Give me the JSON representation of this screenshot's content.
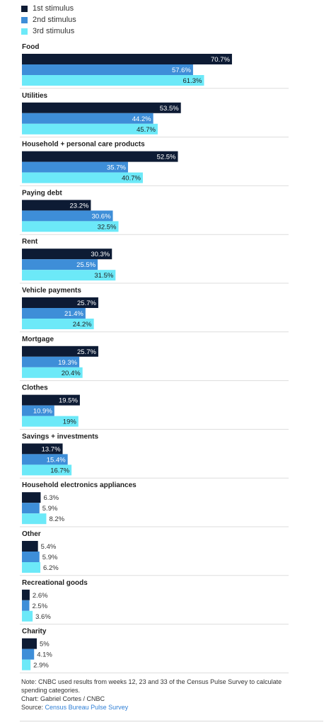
{
  "legend": [
    {
      "label": "1st stimulus",
      "color": "#0d1b34"
    },
    {
      "label": "2nd stimulus",
      "color": "#3e8ed8"
    },
    {
      "label": "3rd stimulus",
      "color": "#6ce9f8"
    }
  ],
  "chart_data": {
    "type": "bar",
    "orientation": "horizontal",
    "grouped": true,
    "xlim": [
      0,
      72
    ],
    "grid": false,
    "legend_position": "top-left",
    "categories": [
      "Food",
      "Utilities",
      "Household + personal care products",
      "Paying debt",
      "Rent",
      "Vehicle payments",
      "Mortgage",
      "Clothes",
      "Savings + investments",
      "Household electronics appliances",
      "Other",
      "Recreational goods",
      "Charity"
    ],
    "series": [
      {
        "name": "1st stimulus",
        "color": "#0d1b34",
        "values": [
          70.7,
          53.5,
          52.5,
          23.2,
          30.3,
          25.7,
          25.7,
          19.5,
          13.7,
          6.3,
          5.4,
          2.6,
          5
        ],
        "labels": [
          "70.7%",
          "53.5%",
          "52.5%",
          "23.2%",
          "30.3%",
          "25.7%",
          "25.7%",
          "19.5%",
          "13.7%",
          "6.3%",
          "5.4%",
          "2.6%",
          "5%"
        ]
      },
      {
        "name": "2nd stimulus",
        "color": "#3e8ed8",
        "values": [
          57.6,
          44.2,
          35.7,
          30.6,
          25.5,
          21.4,
          19.3,
          10.9,
          15.4,
          5.9,
          5.9,
          2.5,
          4.1
        ],
        "labels": [
          "57.6%",
          "44.2%",
          "35.7%",
          "30.6%",
          "25.5%",
          "21.4%",
          "19.3%",
          "10.9%",
          "15.4%",
          "5.9%",
          "5.9%",
          "2.5%",
          "4.1%"
        ]
      },
      {
        "name": "3rd stimulus",
        "color": "#6ce9f8",
        "values": [
          61.3,
          45.7,
          40.7,
          32.5,
          31.5,
          24.2,
          20.4,
          19,
          16.7,
          8.2,
          6.2,
          3.6,
          2.9
        ],
        "labels": [
          "61.3%",
          "45.7%",
          "40.7%",
          "32.5%",
          "31.5%",
          "24.2%",
          "20.4%",
          "19%",
          "16.7%",
          "8.2%",
          "6.2%",
          "3.6%",
          "2.9%"
        ]
      }
    ]
  },
  "notes": {
    "note": "Note: CNBC used results from weeks 12, 23 and 33 of the Census Pulse Survey to calculate spending categories.",
    "credit": "Chart: Gabriel Cortes / CNBC",
    "source_prefix": "Source:",
    "source_link": "Census Bureau Pulse Survey"
  }
}
